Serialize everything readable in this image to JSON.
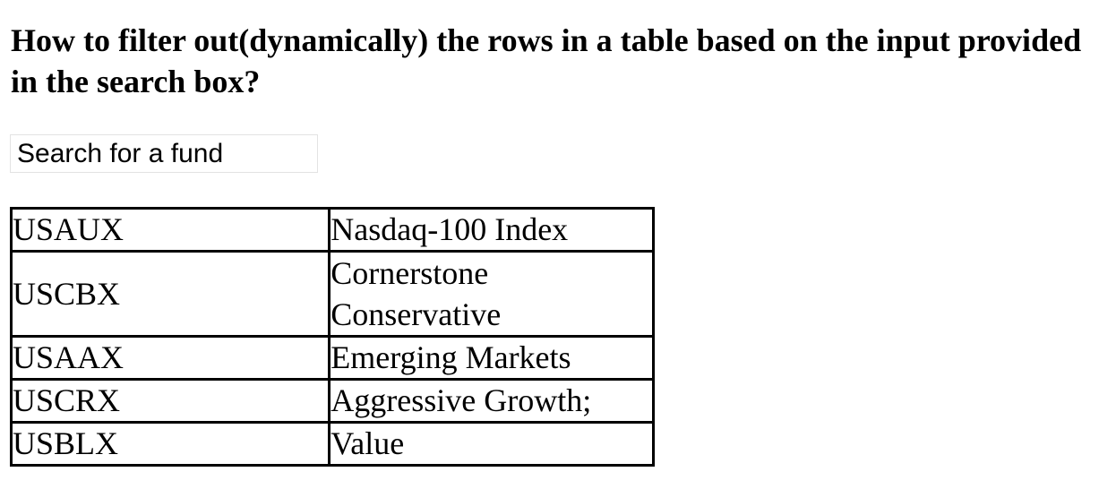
{
  "question": {
    "title": "How to filter out(dynamically) the rows in a table based on the input provided in the search box?"
  },
  "search": {
    "placeholder": "Search for a fund"
  },
  "funds": [
    {
      "ticker": "USAUX",
      "name": "Nasdaq-100 Index"
    },
    {
      "ticker": "USCBX",
      "name": "Cornerstone Conservative"
    },
    {
      "ticker": "USAAX",
      "name": "Emerging Markets"
    },
    {
      "ticker": "USCRX",
      "name": "Aggressive Growth;"
    },
    {
      "ticker": "USBLX",
      "name": "Value"
    }
  ]
}
